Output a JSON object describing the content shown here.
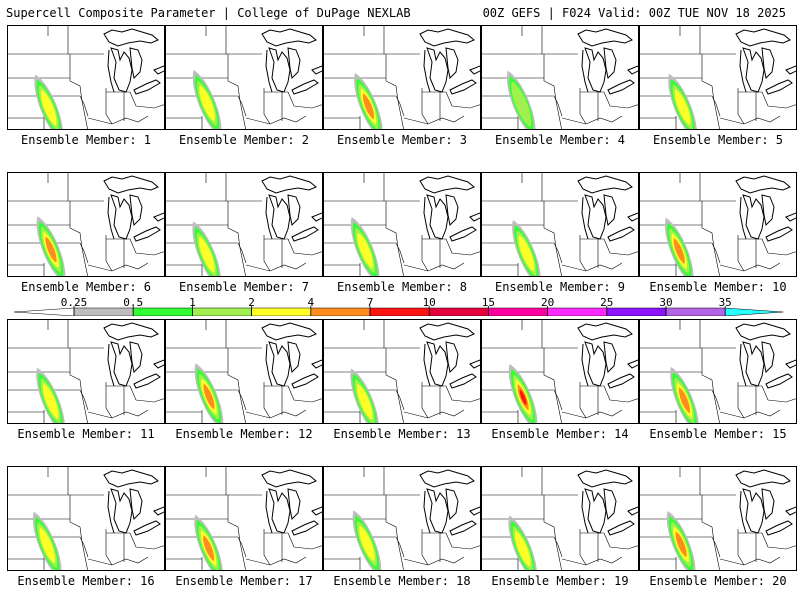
{
  "header": {
    "left": "Supercell Composite Parameter | College of DuPage NEXLAB",
    "right": "00Z GEFS | F024 Valid: 00Z TUE NOV 18 2025"
  },
  "panel_label_prefix": "Ensemble Member: ",
  "members": [
    {
      "number": "1",
      "bands": 4
    },
    {
      "number": "2",
      "bands": 4
    },
    {
      "number": "3",
      "bands": 5
    },
    {
      "number": "4",
      "bands": 3
    },
    {
      "number": "5",
      "bands": 4
    },
    {
      "number": "6",
      "bands": 5
    },
    {
      "number": "7",
      "bands": 4
    },
    {
      "number": "8",
      "bands": 4
    },
    {
      "number": "9",
      "bands": 4
    },
    {
      "number": "10",
      "bands": 5
    },
    {
      "number": "11",
      "bands": 4
    },
    {
      "number": "12",
      "bands": 5
    },
    {
      "number": "13",
      "bands": 4
    },
    {
      "number": "14",
      "bands": 6
    },
    {
      "number": "15",
      "bands": 5
    },
    {
      "number": "16",
      "bands": 4
    },
    {
      "number": "17",
      "bands": 5
    },
    {
      "number": "18",
      "bands": 4
    },
    {
      "number": "19",
      "bands": 4
    },
    {
      "number": "20",
      "bands": 5
    }
  ],
  "colorbar": {
    "ticks": [
      "0.25",
      "0.5",
      "1",
      "2",
      "4",
      "7",
      "10",
      "15",
      "20",
      "25",
      "30",
      "35"
    ],
    "colors": [
      "#bebebe",
      "#32ff32",
      "#a0f050",
      "#ffff28",
      "#ff8c1e",
      "#ff1414",
      "#e6003c",
      "#ff00a0",
      "#ff28ff",
      "#8c14ff",
      "#b464e6",
      "#28ffff"
    ]
  },
  "shading_colors": [
    "#bebebe",
    "#32ff32",
    "#a0f050",
    "#ffff28",
    "#ff8c1e",
    "#ff1414"
  ]
}
